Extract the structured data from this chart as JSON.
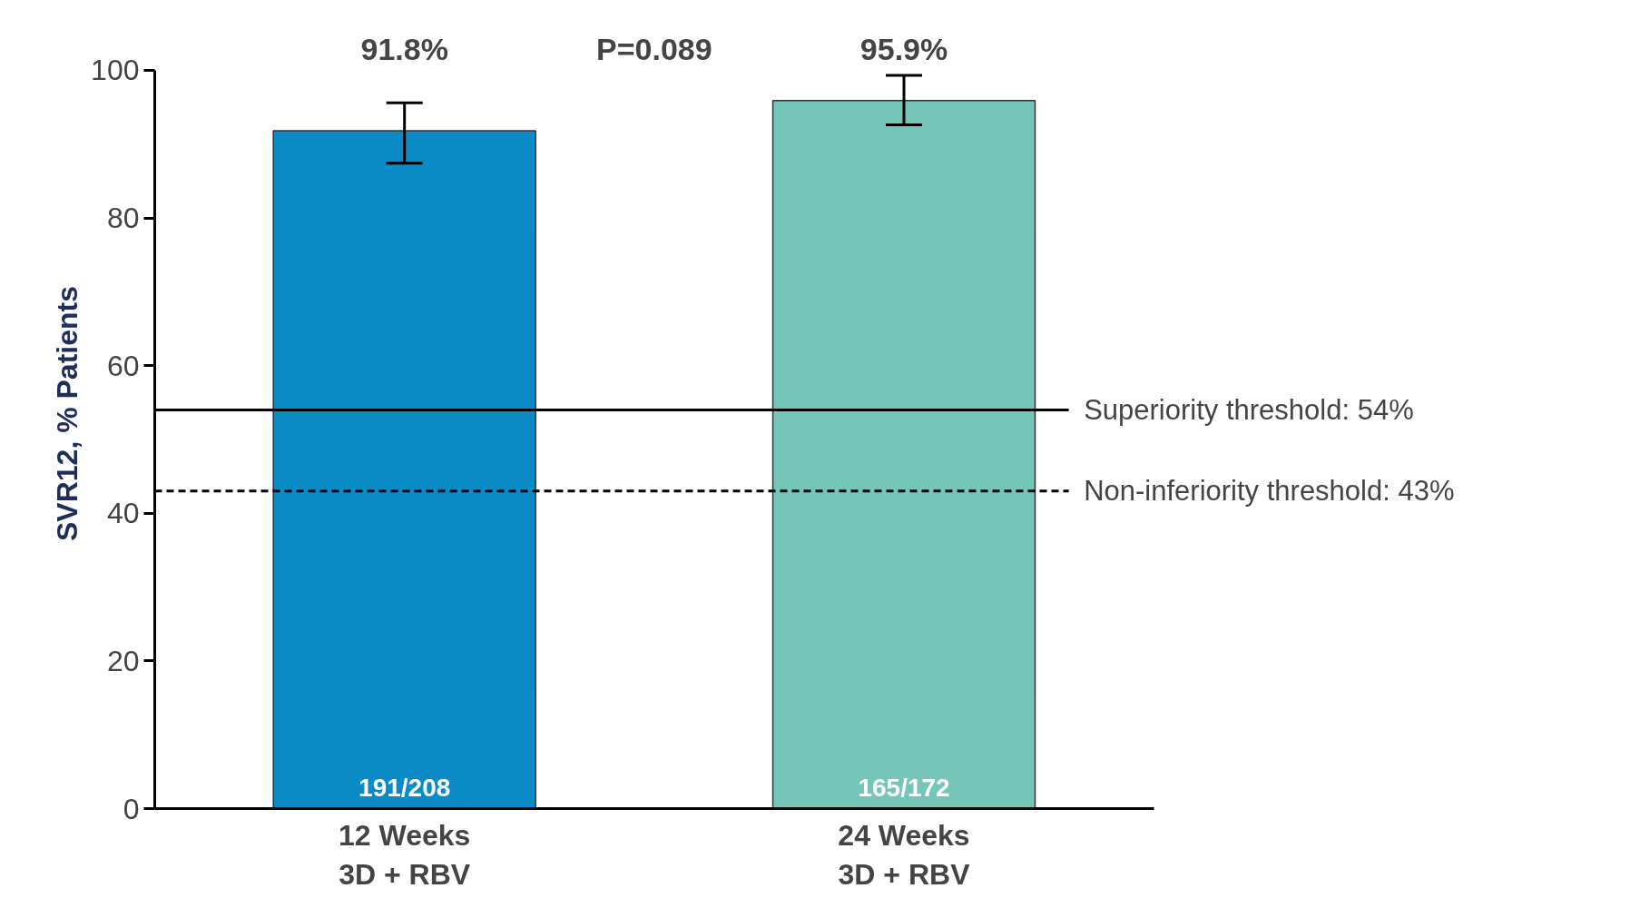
{
  "chart_data": {
    "type": "bar",
    "ylabel": "SVR12, % Patients",
    "categories": [
      "12 Weeks\n3D + RBV",
      "24 Weeks\n3D + RBV"
    ],
    "values": [
      91.8,
      95.9
    ],
    "colors": [
      "#0b8bc6",
      "#76c5b9"
    ],
    "errors": [
      [
        87.4,
        95.6
      ],
      [
        92.6,
        99.3
      ]
    ],
    "value_labels": [
      "91.8%",
      "95.9%"
    ],
    "ylim": [
      0,
      100
    ],
    "yticks": [
      0,
      20,
      40,
      60,
      80,
      100
    ],
    "grid": false,
    "ref_lines": [
      {
        "axis": "y",
        "value": 54,
        "label": "Superiority threshold: 54%",
        "line_style": "solid",
        "color": "#000000"
      },
      {
        "axis": "y",
        "value": 43,
        "label": "Non-inferiority threshold: 43%",
        "line_style": "dashed",
        "color": "#000000"
      }
    ],
    "annotations": [
      "P=0.089",
      "191/208",
      "165/172"
    ]
  }
}
